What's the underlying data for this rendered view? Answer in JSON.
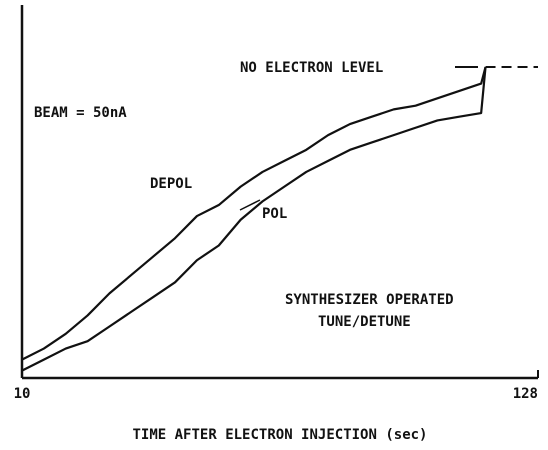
{
  "chart_data": {
    "type": "line",
    "xlabel": "TIME AFTER ELECTRON INJECTION (sec)",
    "x": [
      10,
      15,
      20,
      25,
      30,
      35,
      40,
      45,
      50,
      55,
      60,
      65,
      70,
      75,
      80,
      85,
      90,
      95,
      100,
      105,
      110,
      115,
      116
    ],
    "series": [
      {
        "name": "DEPOL",
        "color": "#111111",
        "values": [
          5,
          8,
          12,
          17,
          23,
          28,
          33,
          38,
          44,
          47,
          52,
          56,
          59,
          62,
          66,
          69,
          71,
          73,
          74,
          76,
          78,
          80,
          84.5
        ]
      },
      {
        "name": "POL",
        "color": "#111111",
        "values": [
          2,
          5,
          8,
          10,
          14,
          18,
          22,
          26,
          32,
          36,
          43,
          48,
          52,
          56,
          59,
          62,
          64,
          66,
          68,
          70,
          71,
          72,
          84.5
        ]
      }
    ],
    "level": {
      "label": "NO ELECTRON LEVEL",
      "value": 84.5,
      "x": [
        116,
        128
      ]
    },
    "annotations": [
      "BEAM = 50nA",
      "SYNTHESIZER OPERATED",
      "TUNE/DETUNE"
    ],
    "xlim": [
      10,
      128
    ],
    "xticks": [
      10,
      128
    ],
    "ylim": [
      0,
      100
    ]
  }
}
